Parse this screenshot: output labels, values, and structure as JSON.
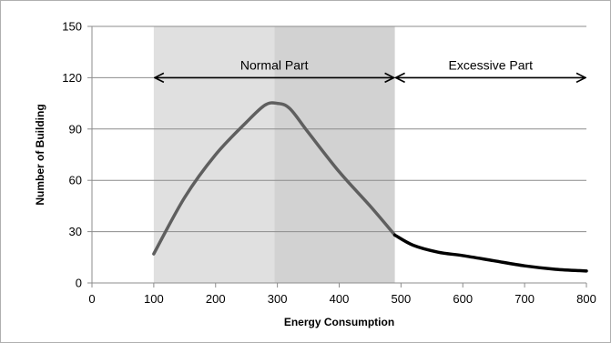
{
  "chart_data": {
    "type": "line",
    "title": "",
    "xlabel": "Energy Consumption",
    "ylabel": "Number of Building",
    "xlim": [
      0,
      800
    ],
    "ylim": [
      0,
      150
    ],
    "x_ticks": [
      0,
      100,
      200,
      300,
      400,
      500,
      600,
      700,
      800
    ],
    "y_ticks": [
      0,
      30,
      60,
      90,
      120,
      150
    ],
    "grid": "horizontal",
    "series": [
      {
        "segment": "normal",
        "color": "#5f5f5f",
        "x": [
          100,
          150,
          200,
          250,
          280,
          300,
          320,
          350,
          400,
          450,
          490
        ],
        "y": [
          17,
          50,
          75,
          94,
          104,
          105,
          102,
          88,
          65,
          45,
          28
        ]
      },
      {
        "segment": "excessive",
        "color": "#000000",
        "x": [
          490,
          520,
          560,
          600,
          650,
          700,
          750,
          800
        ],
        "y": [
          28,
          22,
          18,
          16,
          13,
          10,
          8,
          7
        ]
      }
    ],
    "regions": [
      {
        "from": 100,
        "to": 295,
        "color": "#e0e0e0"
      },
      {
        "from": 295,
        "to": 490,
        "color": "#d2d2d2"
      }
    ],
    "annotations": [
      {
        "label": "Normal Part",
        "x_from": 100,
        "x_to": 490,
        "y": 120
      },
      {
        "label": "Excessive Part",
        "x_from": 490,
        "x_to": 800,
        "y": 120
      }
    ]
  }
}
